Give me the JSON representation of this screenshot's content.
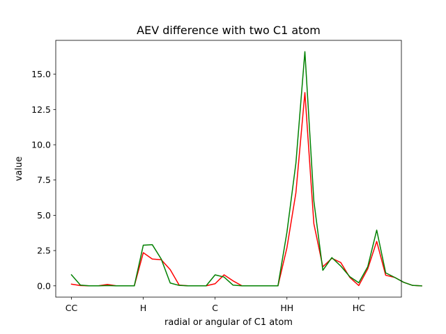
{
  "chart_data": {
    "type": "line",
    "title": "AEV difference with two C1 atom",
    "xlabel": "radial or angular of C1 atom",
    "ylabel": "value",
    "xlim": [
      -1.75,
      36.75
    ],
    "ylim": [
      -0.8,
      17.4
    ],
    "grid": false,
    "x_ticks": [
      {
        "value": 0,
        "label": "CC"
      },
      {
        "value": 8,
        "label": "H"
      },
      {
        "value": 16,
        "label": "C"
      },
      {
        "value": 24,
        "label": "HH"
      },
      {
        "value": 32,
        "label": "HC"
      }
    ],
    "y_ticks": [
      {
        "value": 0,
        "label": "0.0"
      },
      {
        "value": 2.5,
        "label": "2.5"
      },
      {
        "value": 5,
        "label": "5.0"
      },
      {
        "value": 7.5,
        "label": "7.5"
      },
      {
        "value": 10,
        "label": "10.0"
      },
      {
        "value": 12.5,
        "label": "12.5"
      },
      {
        "value": 15,
        "label": "15.0"
      }
    ],
    "x": [
      0,
      1,
      2,
      3,
      4,
      5,
      6,
      7,
      8,
      9,
      10,
      11,
      12,
      13,
      14,
      15,
      16,
      17,
      18,
      19,
      20,
      21,
      22,
      23,
      24,
      25,
      26,
      27,
      28,
      29,
      30,
      31,
      32,
      33,
      34,
      35,
      36,
      37,
      38,
      39
    ],
    "series": [
      {
        "color": "#ff0000",
        "values": [
          0.12,
          0.02,
          0.0,
          0.0,
          0.1,
          0.0,
          0.0,
          0.0,
          2.35,
          1.9,
          1.85,
          1.15,
          0.05,
          0.0,
          0.0,
          0.0,
          0.15,
          0.78,
          0.35,
          0.0,
          0.0,
          0.0,
          0.0,
          0.0,
          2.7,
          6.6,
          13.7,
          4.4,
          1.35,
          1.95,
          1.65,
          0.6,
          0.02,
          1.2,
          3.15,
          0.75,
          0.6,
          0.25,
          0.03,
          0.0
        ]
      },
      {
        "color": "#008000",
        "values": [
          0.78,
          0.05,
          0.0,
          0.0,
          0.02,
          0.0,
          0.0,
          0.0,
          2.88,
          2.92,
          1.9,
          0.2,
          0.03,
          0.0,
          0.0,
          0.0,
          0.78,
          0.62,
          0.05,
          0.0,
          0.0,
          0.0,
          0.0,
          0.0,
          3.8,
          8.7,
          16.6,
          6.0,
          1.1,
          2.0,
          1.4,
          0.65,
          0.22,
          1.35,
          3.95,
          0.92,
          0.6,
          0.25,
          0.03,
          0.0
        ]
      }
    ]
  }
}
